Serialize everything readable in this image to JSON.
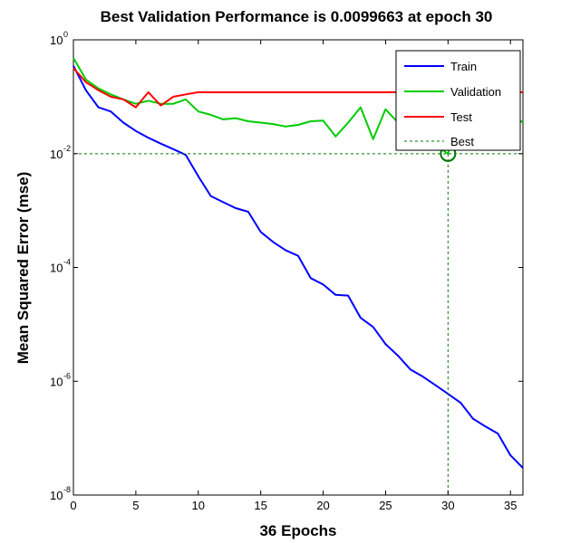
{
  "chart_data": {
    "type": "line",
    "title": "Best Validation Performance is 0.0099663 at epoch 30",
    "xlabel": "36 Epochs",
    "ylabel": "Mean Squared Error  (mse)",
    "xlim": [
      0,
      36
    ],
    "ylim": [
      1e-08,
      1
    ],
    "yscale": "log",
    "x_ticks": [
      "0",
      "5",
      "10",
      "15",
      "20",
      "25",
      "30",
      "35"
    ],
    "y_ticks": [
      {
        "base": "10",
        "exp": "0",
        "value": 1
      },
      {
        "base": "10",
        "exp": "-2",
        "value": 0.01
      },
      {
        "base": "10",
        "exp": "-4",
        "value": 0.0001
      },
      {
        "base": "10",
        "exp": "-6",
        "value": 1e-06
      },
      {
        "base": "10",
        "exp": "-8",
        "value": 1e-08
      }
    ],
    "grid": false,
    "legend_position": "top-right",
    "series": [
      {
        "name": "Train",
        "color": "#0000ff",
        "x": [
          0,
          1,
          2,
          3,
          4,
          5,
          6,
          7,
          8,
          9,
          10,
          11,
          12,
          13,
          14,
          15,
          16,
          17,
          18,
          19,
          20,
          21,
          22,
          23,
          24,
          25,
          26,
          27,
          28,
          29,
          30,
          31,
          32,
          33,
          34,
          35,
          36
        ],
        "y": [
          0.35,
          0.13,
          0.065,
          0.055,
          0.035,
          0.025,
          0.019,
          0.015,
          0.012,
          0.0095,
          0.004,
          0.0018,
          0.0014,
          0.0011,
          0.00095,
          0.00042,
          0.00028,
          0.0002,
          0.00016,
          6.5e-05,
          5e-05,
          3.3e-05,
          3.2e-05,
          1.3e-05,
          9e-06,
          4.5e-06,
          2.8e-06,
          1.6e-06,
          1.2e-06,
          8.5e-07,
          6e-07,
          4.2e-07,
          2.2e-07,
          1.6e-07,
          1.2e-07,
          5e-08,
          3e-08
        ]
      },
      {
        "name": "Validation",
        "color": "#00cc00",
        "x": [
          0,
          1,
          2,
          3,
          4,
          5,
          6,
          7,
          8,
          9,
          10,
          11,
          12,
          13,
          14,
          15,
          16,
          17,
          18,
          19,
          20,
          21,
          22,
          23,
          24,
          25,
          26,
          27,
          28,
          29,
          30,
          31,
          32,
          33,
          34,
          35,
          36
        ],
        "y": [
          0.48,
          0.2,
          0.14,
          0.11,
          0.09,
          0.075,
          0.085,
          0.075,
          0.075,
          0.09,
          0.055,
          0.048,
          0.04,
          0.042,
          0.037,
          0.035,
          0.033,
          0.03,
          0.032,
          0.037,
          0.038,
          0.02,
          0.035,
          0.065,
          0.018,
          0.06,
          0.035,
          0.025,
          0.03,
          0.014,
          0.0099663,
          0.06,
          0.045,
          0.025,
          0.04,
          0.05,
          0.035
        ]
      },
      {
        "name": "Test",
        "color": "#ff0000",
        "x": [
          0,
          1,
          2,
          3,
          4,
          5,
          6,
          7,
          8,
          9,
          10,
          11,
          12,
          13,
          14,
          15,
          16,
          17,
          18,
          19,
          20,
          21,
          22,
          23,
          24,
          25,
          26,
          27,
          28,
          29,
          30,
          31,
          32,
          33,
          34,
          35,
          36
        ],
        "y": [
          0.32,
          0.18,
          0.13,
          0.1,
          0.09,
          0.065,
          0.12,
          0.07,
          0.1,
          0.11,
          0.12,
          0.12,
          0.12,
          0.12,
          0.12,
          0.12,
          0.12,
          0.12,
          0.12,
          0.12,
          0.12,
          0.12,
          0.12,
          0.12,
          0.12,
          0.12,
          0.12,
          0.12,
          0.12,
          0.12,
          0.12,
          0.12,
          0.12,
          0.12,
          0.12,
          0.12,
          0.12
        ]
      }
    ],
    "best": {
      "name": "Best",
      "color": "#007700",
      "epoch": 30,
      "value": 0.0099663
    }
  }
}
